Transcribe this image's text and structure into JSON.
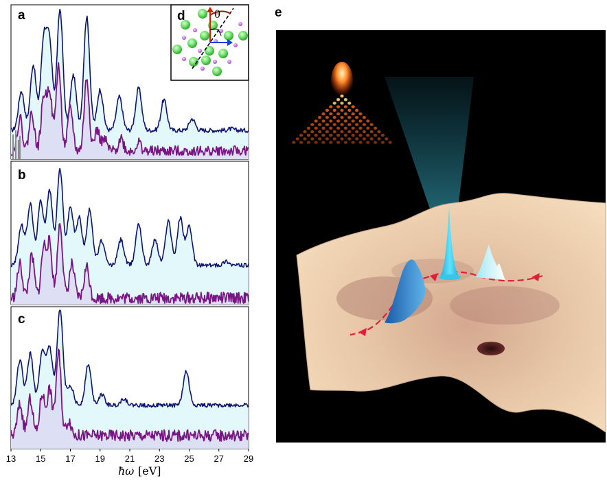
{
  "figure": {
    "panels": {
      "a": "a",
      "b": "b",
      "c": "c",
      "d": "d",
      "e": "e"
    },
    "inset_angle_label": "θ",
    "xlabel": {
      "symbol": "ħω",
      "unit": "[eV]"
    },
    "colors": {
      "upper_line": "#0d1572",
      "upper_fill": "#dff7fb",
      "lower_line": "#7a1584",
      "lower_fill": "#dcdcf2",
      "grey_peak": "#8a8a8a",
      "atom_large": "#6fe06a",
      "atom_small": "#c979e6",
      "arrow_red": "#cc2200",
      "arrow_blue": "#1b3fd6"
    }
  },
  "chart_data": [
    {
      "panel": "a",
      "type": "line",
      "xlim": [
        13,
        29
      ],
      "x_ticks": [
        "13",
        "15",
        "17",
        "19",
        "21",
        "23",
        "25",
        "27",
        "29"
      ],
      "series": [
        {
          "role": "upper",
          "peaks": [
            [
              13.7,
              0.44
            ],
            [
              14.5,
              0.62
            ],
            [
              15.2,
              0.77
            ],
            [
              15.6,
              0.74
            ],
            [
              16.3,
              1.0
            ],
            [
              17.2,
              0.55
            ],
            [
              18.1,
              0.95
            ],
            [
              19.0,
              0.45
            ],
            [
              20.3,
              0.4
            ],
            [
              21.6,
              0.46
            ],
            [
              23.3,
              0.38
            ],
            [
              25.2,
              0.25
            ],
            [
              27.8,
              0.18
            ]
          ],
          "baseline": 0.17
        },
        {
          "role": "lower",
          "peaks": [
            [
              13.6,
              0.3
            ],
            [
              14.4,
              0.35
            ],
            [
              15.2,
              0.46
            ],
            [
              15.6,
              0.52
            ],
            [
              16.2,
              0.72
            ],
            [
              17.0,
              0.38
            ],
            [
              18.1,
              0.62
            ],
            [
              18.8,
              0.2
            ],
            [
              19.3,
              0.12
            ],
            [
              20.4,
              0.14
            ],
            [
              21.6,
              0.1
            ]
          ],
          "baseline": 0.03
        }
      ]
    },
    {
      "panel": "b",
      "type": "line",
      "xlim": [
        13,
        29
      ],
      "x_ticks": [
        "13",
        "15",
        "17",
        "19",
        "21",
        "23",
        "25",
        "27",
        "29"
      ],
      "series": [
        {
          "role": "upper",
          "peaks": [
            [
              13.7,
              0.56
            ],
            [
              14.3,
              0.72
            ],
            [
              15.0,
              0.74
            ],
            [
              15.6,
              0.82
            ],
            [
              16.3,
              0.98
            ],
            [
              17.0,
              0.7
            ],
            [
              17.6,
              0.62
            ],
            [
              18.3,
              0.68
            ],
            [
              19.1,
              0.45
            ],
            [
              20.4,
              0.46
            ],
            [
              21.6,
              0.58
            ],
            [
              22.7,
              0.46
            ],
            [
              23.6,
              0.6
            ],
            [
              24.4,
              0.62
            ],
            [
              25.0,
              0.55
            ],
            [
              27.5,
              0.3
            ]
          ],
          "baseline": 0.27
        },
        {
          "role": "lower",
          "peaks": [
            [
              13.6,
              0.3
            ],
            [
              14.4,
              0.36
            ],
            [
              15.2,
              0.42
            ],
            [
              15.6,
              0.45
            ],
            [
              16.3,
              0.62
            ],
            [
              17.1,
              0.3
            ],
            [
              18.1,
              0.28
            ]
          ],
          "baseline": 0.04
        }
      ]
    },
    {
      "panel": "c",
      "type": "line",
      "xlim": [
        13,
        29
      ],
      "x_ticks": [
        "13",
        "15",
        "17",
        "19",
        "21",
        "23",
        "25",
        "27",
        "29"
      ],
      "series": [
        {
          "role": "upper",
          "peaks": [
            [
              13.6,
              0.63
            ],
            [
              14.3,
              0.68
            ],
            [
              15.1,
              0.68
            ],
            [
              15.6,
              0.72
            ],
            [
              16.3,
              1.0
            ],
            [
              17.0,
              0.45
            ],
            [
              18.2,
              0.6
            ],
            [
              19.1,
              0.38
            ],
            [
              20.6,
              0.35
            ],
            [
              24.8,
              0.55
            ],
            [
              27.5,
              0.3
            ]
          ],
          "baseline": 0.3
        },
        {
          "role": "lower",
          "peaks": [
            [
              13.6,
              0.32
            ],
            [
              14.3,
              0.36
            ],
            [
              15.1,
              0.4
            ],
            [
              15.6,
              0.44
            ],
            [
              16.2,
              0.72
            ],
            [
              16.9,
              0.2
            ]
          ],
          "baseline": 0.08
        }
      ]
    }
  ]
}
